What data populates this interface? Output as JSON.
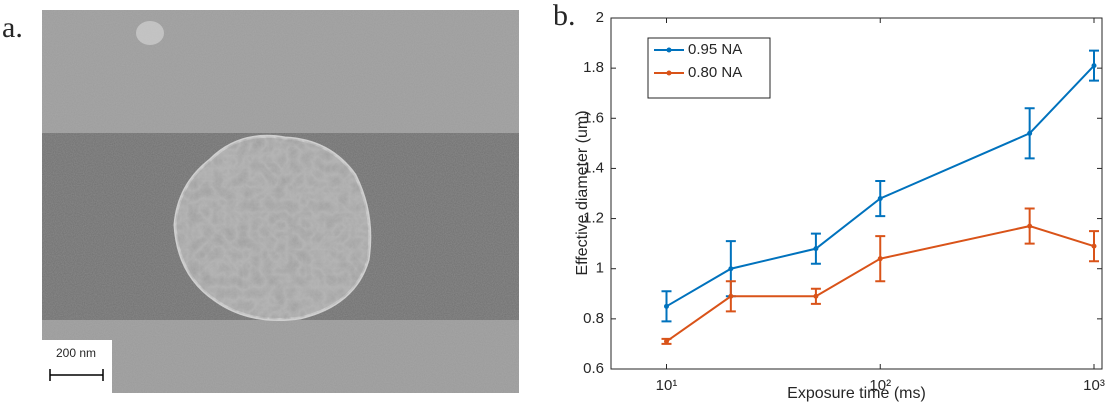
{
  "image_panel": {
    "label": "a.",
    "scale_bar_label": "200 nm"
  },
  "chart_data": {
    "type": "line",
    "panel_label": "b.",
    "xlabel": "Exposure time (ms)",
    "ylabel": "Effective diameter (um)",
    "x": [
      10,
      20,
      50,
      100,
      500,
      1000
    ],
    "series": [
      {
        "name": "0.95 NA",
        "color": "#0072bd",
        "values": [
          0.85,
          1.0,
          1.08,
          1.28,
          1.54,
          1.81
        ],
        "errors": [
          0.06,
          0.11,
          0.06,
          0.07,
          0.1,
          0.06
        ]
      },
      {
        "name": "0.80 NA",
        "color": "#d95319",
        "values": [
          0.71,
          0.89,
          0.89,
          1.04,
          1.17,
          1.09
        ],
        "errors": [
          0.01,
          0.06,
          0.03,
          0.09,
          0.07,
          0.06
        ]
      }
    ],
    "xlim": [
      5.5,
      1090
    ],
    "log_x": true,
    "xticks": [
      {
        "value": 10,
        "label": "10¹"
      },
      {
        "value": 100,
        "label": "10²"
      },
      {
        "value": 1000,
        "label": "10³"
      }
    ],
    "ylim": [
      0.6,
      2
    ],
    "yticks": [
      0.6,
      0.8,
      1,
      1.2,
      1.4,
      1.6,
      1.8,
      2
    ],
    "legend": "upper left"
  }
}
